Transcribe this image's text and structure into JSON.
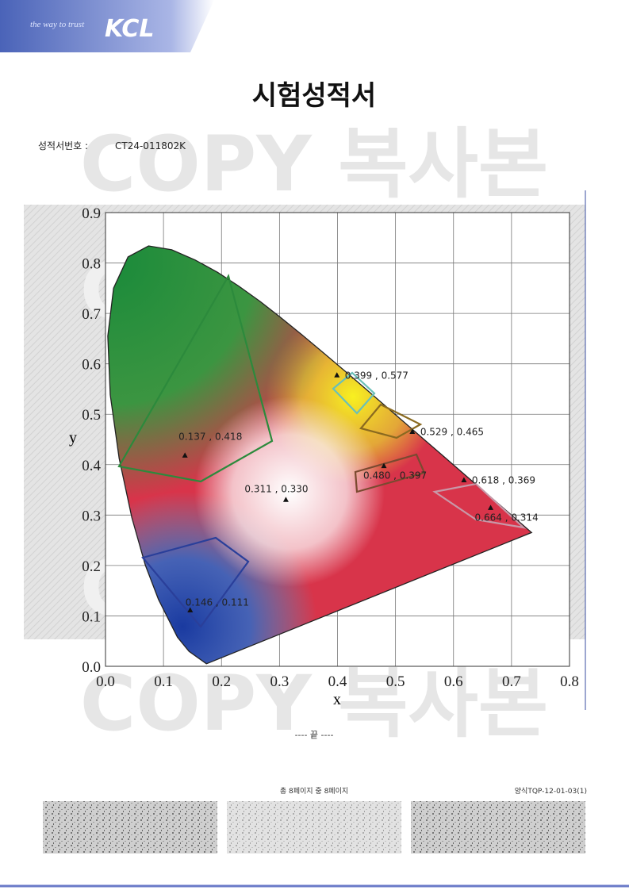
{
  "header": {
    "slogan": "the way to trust",
    "logo": "KCL"
  },
  "title": "시험성적서",
  "report_number_label": "성적서번호 :",
  "report_number": "CT24-011802K",
  "watermark": "COPY 복사본",
  "chart_data": {
    "type": "scatter",
    "x_label": "x",
    "y_label": "y",
    "x": [
      0.399,
      0.529,
      0.48,
      0.618,
      0.664,
      0.137,
      0.311,
      0.146
    ],
    "values": [
      0.577,
      0.465,
      0.397,
      0.369,
      0.314,
      0.418,
      0.33,
      0.111
    ],
    "value_labels": [
      "0.399 , 0.577",
      "0.529 , 0.465",
      "0.480 , 0.397",
      "0.618 , 0.369",
      "0.664 , 0.314",
      "0.137 , 0.418",
      "0.311 , 0.330",
      "0.146 , 0.111"
    ],
    "color": "#111111",
    "xlim": [
      0,
      0.8
    ],
    "ylim": [
      0,
      0.9
    ],
    "xticks": [
      {
        "value": 0,
        "label": "0.0"
      },
      0.1,
      0.2,
      0.3,
      0.4,
      0.5,
      0.6,
      0.7,
      0.8
    ],
    "yticks": [
      {
        "value": 0,
        "label": "0.0"
      },
      0.1,
      0.2,
      0.3,
      0.4,
      0.5,
      0.6,
      0.7,
      0.8,
      0.9
    ],
    "grid": true
  },
  "end_mark": "---- 끝 ----",
  "page_info": "총 8페이지 중 8페이지",
  "form_code": "양식TQP-12-01-03(1)"
}
